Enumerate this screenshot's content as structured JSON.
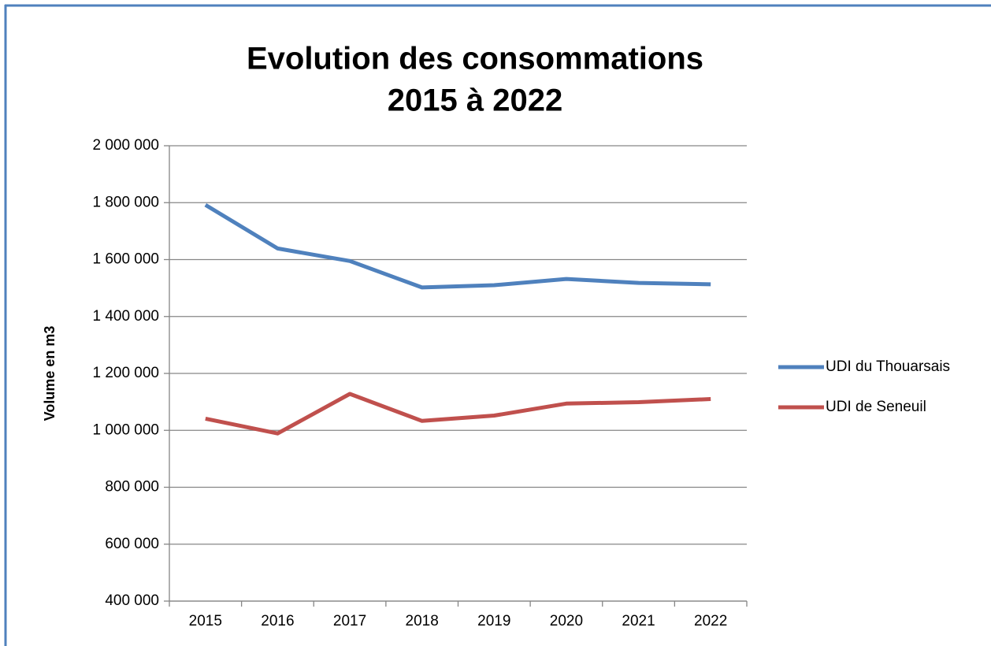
{
  "chart_data": {
    "type": "line",
    "title": [
      "Evolution des consommations",
      "2015 à 2022"
    ],
    "y_label": "Volume en m3",
    "categories": [
      "2015",
      "2016",
      "2017",
      "2018",
      "2019",
      "2020",
      "2021",
      "2022"
    ],
    "series": [
      {
        "name": "UDI du Thouarsais",
        "color": "#4f81bd",
        "values": [
          1792000,
          1639000,
          1595000,
          1502000,
          1510000,
          1532000,
          1518000,
          1513000
        ]
      },
      {
        "name": "UDI de Seneuil",
        "color": "#c0504d",
        "values": [
          1041000,
          989000,
          1128000,
          1033000,
          1052000,
          1094000,
          1099000,
          1110000
        ]
      }
    ],
    "ylim": [
      400000,
      2000000
    ],
    "yticks": [
      {
        "value": 400000,
        "label": "400 000"
      },
      {
        "value": 600000,
        "label": "600 000"
      },
      {
        "value": 800000,
        "label": "800 000"
      },
      {
        "value": 1000000,
        "label": "1 000 000"
      },
      {
        "value": 1200000,
        "label": "1 200 000"
      },
      {
        "value": 1400000,
        "label": "1 400 000"
      },
      {
        "value": 1600000,
        "label": "1 600 000"
      },
      {
        "value": 1800000,
        "label": "1 800 000"
      },
      {
        "value": 2000000,
        "label": "2 000 000"
      }
    ],
    "grid": true,
    "legend": "right"
  }
}
